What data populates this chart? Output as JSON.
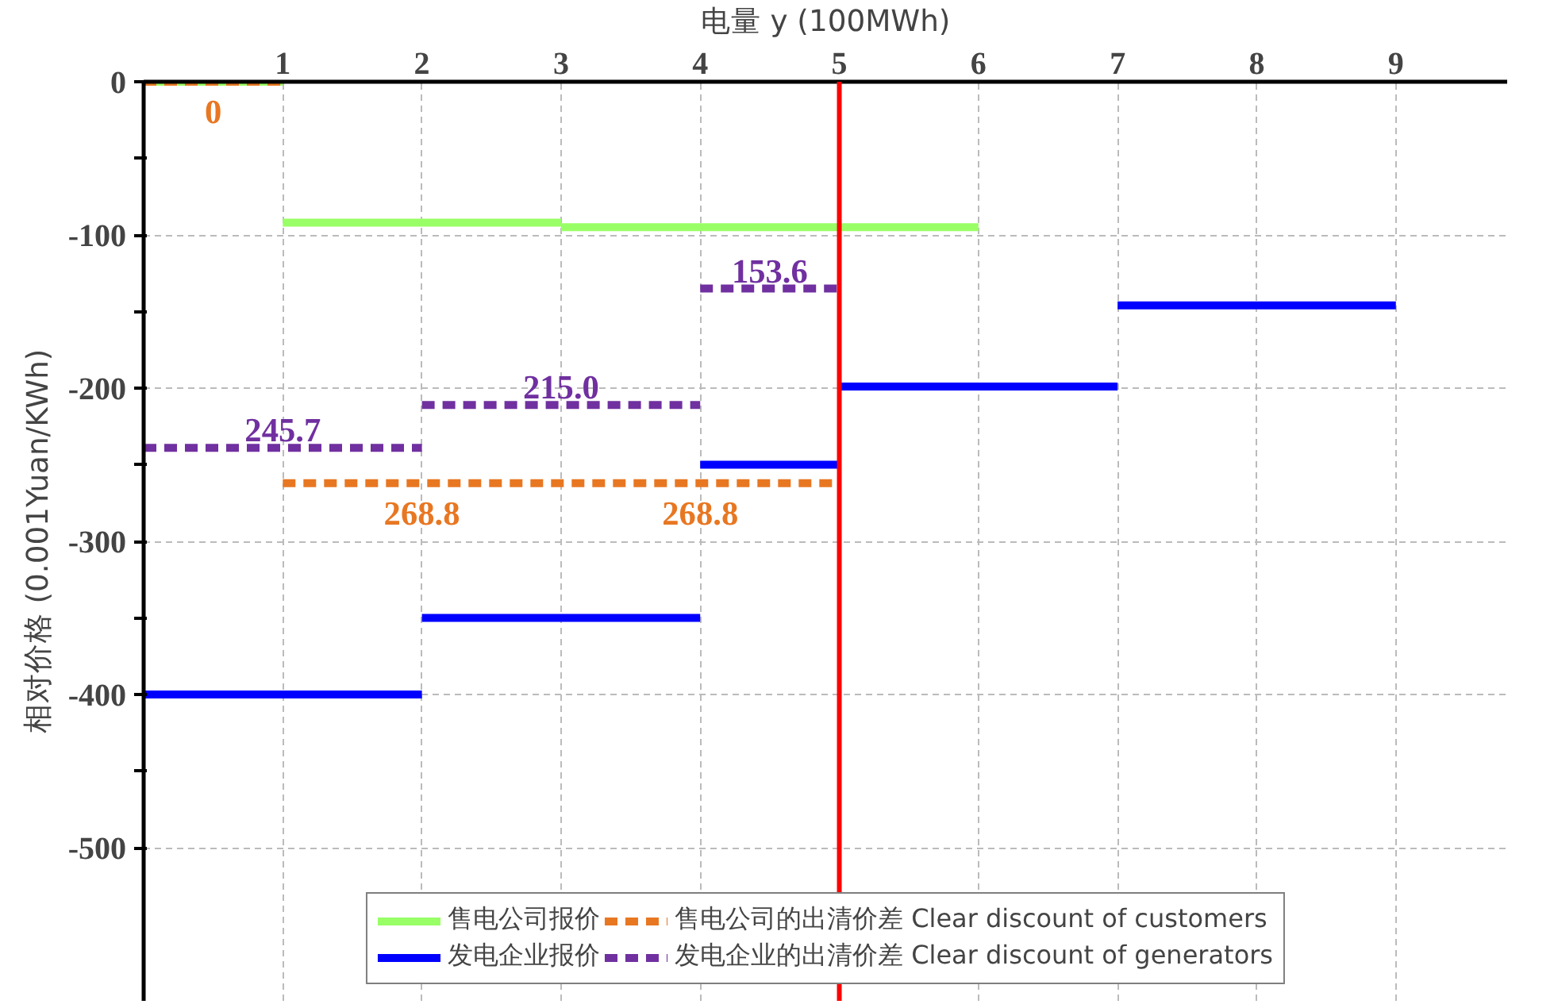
{
  "chart_data": {
    "type": "line",
    "xlabel": "电量 y (100MWh)",
    "ylabel": "相对价格 (0.001Yuan/KWh)",
    "series": [
      {
        "name": "售电公司报价",
        "color": "#99ff66",
        "x": [
          0,
          1,
          null,
          1,
          3,
          null,
          3,
          6
        ],
        "values": [
          0,
          0,
          null,
          -92,
          -92,
          null,
          -95,
          -95
        ]
      },
      {
        "name": "发电企业报价",
        "color": "#0000ff",
        "x": [
          0,
          2,
          null,
          2,
          4,
          null,
          4,
          5,
          null,
          5,
          7,
          null,
          7,
          9
        ],
        "values": [
          -400,
          -400,
          null,
          -350,
          -350,
          null,
          -250,
          -250,
          null,
          -199,
          -199,
          null,
          -146,
          -146
        ]
      },
      {
        "name": "售电公司的出清价差 Clear discount of customers",
        "color": "#e87722",
        "line_style": "dashed",
        "x": [
          0,
          1,
          null,
          1,
          5
        ],
        "values": [
          0,
          0,
          null,
          -262,
          -262
        ]
      },
      {
        "name": "发电企业的出清价差 Clear discount of generators",
        "color": "#7030a0",
        "line_style": "dashed",
        "x": [
          0,
          2,
          null,
          2,
          4,
          null,
          4,
          5
        ],
        "values": [
          -239,
          -239,
          null,
          -211,
          -211,
          null,
          -135,
          -135
        ]
      }
    ],
    "xlim": [
      0,
      9.8
    ],
    "ylim": [
      -600,
      0
    ],
    "xticks": [
      1,
      2,
      3,
      4,
      5,
      6,
      7,
      8,
      9
    ],
    "yticks": [
      0,
      {
        "value": -50,
        "label": null
      },
      -100,
      {
        "value": -150,
        "label": null
      },
      -200,
      {
        "value": -250,
        "label": null
      },
      -300,
      {
        "value": -350,
        "label": null
      },
      -400,
      {
        "value": -450,
        "label": null
      },
      -500
    ],
    "grid": true,
    "legend": "bottom",
    "line_style": "solid",
    "marker": "none",
    "ref_lines": [
      {
        "axis": "x",
        "value": 5,
        "color": "#ff0000"
      }
    ],
    "annotations": [
      {
        "text": "0",
        "x": 0.5,
        "y": 0
      },
      {
        "text": "245.7",
        "x": 1,
        "y": -239
      },
      {
        "text": "215.0",
        "x": 3,
        "y": -211
      },
      {
        "text": "153.6",
        "x": 4.5,
        "y": -135
      },
      {
        "text": "268.8",
        "x": 2,
        "y": -262
      },
      {
        "text": "268.8",
        "x": 4,
        "y": -262
      }
    ]
  }
}
